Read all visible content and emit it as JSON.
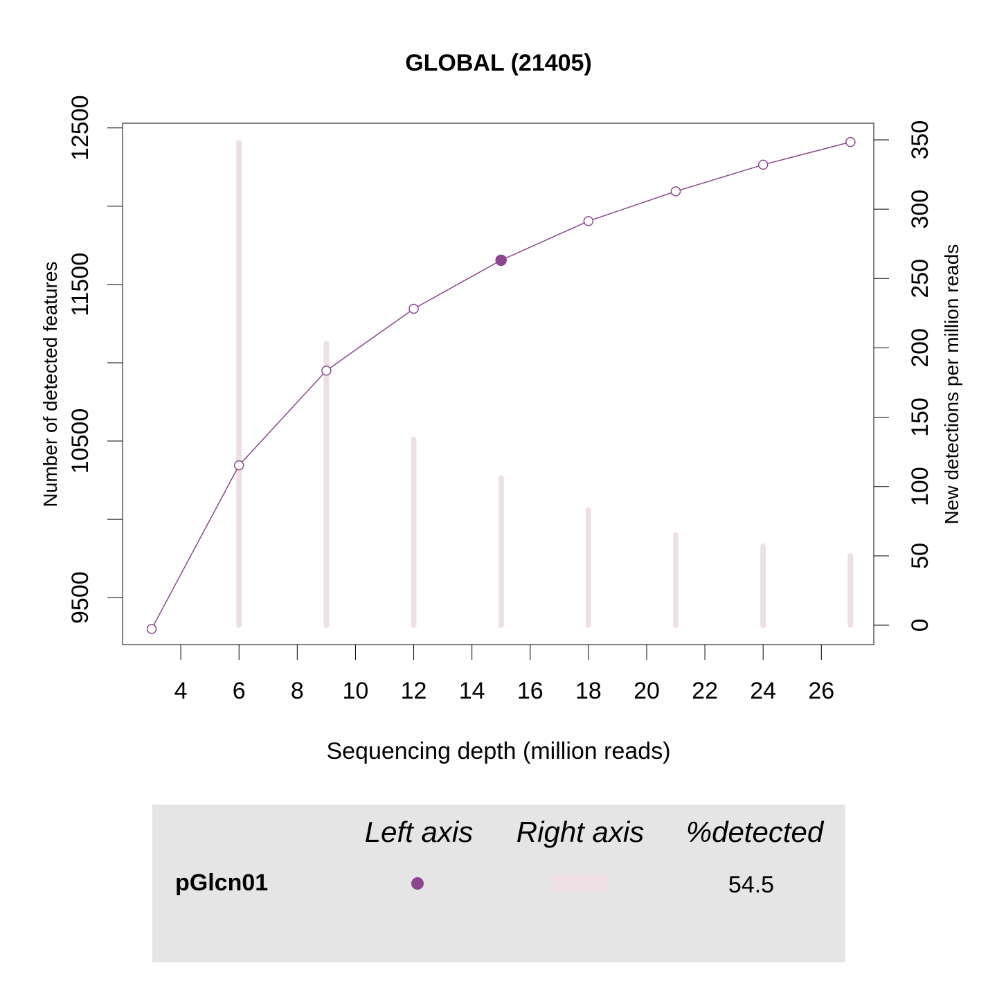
{
  "chart_data": {
    "type": "line",
    "title": "GLOBAL (21405)",
    "xlabel": "Sequencing depth (million reads)",
    "ylabel_left": "Number of detected features",
    "ylabel_right": "New detections per million reads",
    "xlim": [
      2.0,
      27.8
    ],
    "ylim_left": [
      9200,
      12530
    ],
    "ylim_right": [
      -14,
      362
    ],
    "x_ticks": [
      4,
      6,
      8,
      10,
      12,
      14,
      16,
      18,
      20,
      22,
      24,
      26
    ],
    "y_left_ticks": [
      9500,
      10000,
      10500,
      11000,
      11500,
      12000,
      12500
    ],
    "y_left_tick_labels": [
      "9500",
      "10500",
      "11500",
      "12500"
    ],
    "y_right_ticks": [
      0,
      50,
      100,
      150,
      200,
      250,
      300,
      350
    ],
    "grid": false,
    "series": [
      {
        "name": "pGlcn01",
        "axis": "left",
        "style": "line-points",
        "color": "#8B468E",
        "x": [
          3,
          6,
          9,
          12,
          15,
          18,
          21,
          24,
          27
        ],
        "y": [
          9300,
          10345,
          10950,
          11345,
          11655,
          11905,
          12095,
          12265,
          12410
        ],
        "highlight_index": 4
      },
      {
        "name": "pGlcn01",
        "axis": "right",
        "style": "vertical-bars",
        "color": "#EEDFE4",
        "x": [
          6,
          9,
          12,
          15,
          18,
          21,
          24,
          27
        ],
        "values": [
          348,
          203,
          134,
          106,
          83,
          65,
          57,
          50
        ]
      }
    ],
    "legend": {
      "placement": "bottom",
      "headers": [
        "Left axis",
        "Right axis",
        "%detected"
      ],
      "rows": [
        {
          "label": "pGlcn01",
          "left_color": "#8B468E",
          "right_color": "#EEDFE4",
          "percent_detected": "54.5"
        }
      ]
    }
  }
}
